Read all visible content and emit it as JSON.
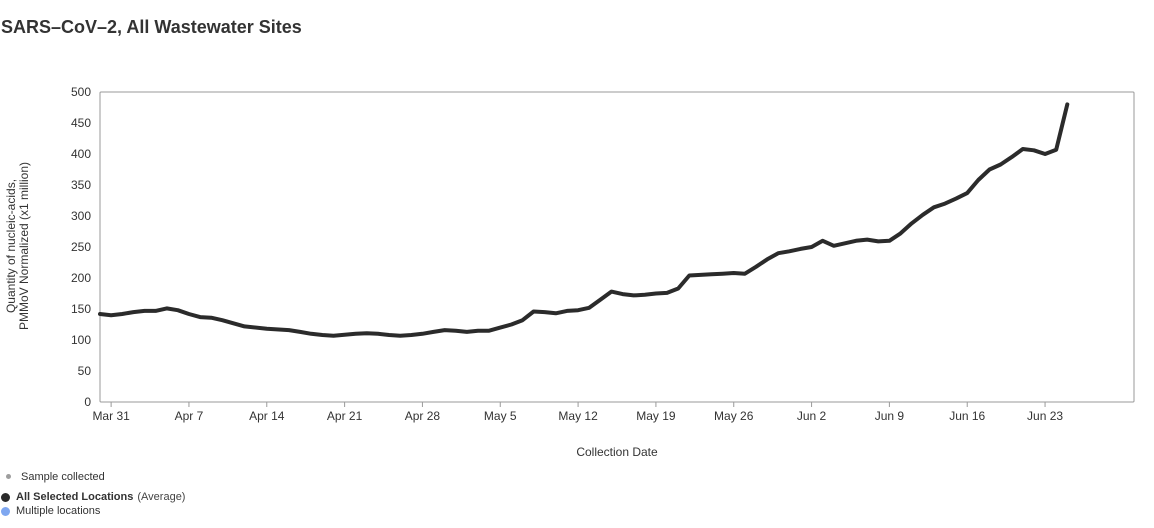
{
  "title": "SARS–CoV–2, All Wastewater Sites",
  "legend": {
    "sample_label": "Sample collected",
    "sample_color": "#9e9e9e",
    "series_label": "All Selected Locations",
    "series_note": "(Average)",
    "series_color": "#2b2b2b",
    "multiple_label": "Multiple locations",
    "multiple_color": "#7fa7f0"
  },
  "chart_data": {
    "type": "line",
    "xlabel": "Collection Date",
    "ylabel": [
      "Quantity of nucleic-acids,",
      "PMMoV Normalized (x1 million)"
    ],
    "ylim": [
      0,
      500
    ],
    "yticks": [
      0,
      50,
      100,
      150,
      200,
      250,
      300,
      350,
      400,
      450,
      500
    ],
    "x_ticks": [
      "Mar 31",
      "Apr 7",
      "Apr 14",
      "Apr 21",
      "Apr 28",
      "May 5",
      "May 12",
      "May 19",
      "May 26",
      "Jun 2",
      "Jun 9",
      "Jun 16",
      "Jun 23"
    ],
    "x_range": [
      "2024-03-30",
      "2024-07-01"
    ],
    "grid": false,
    "series": [
      {
        "color": "#2b2b2b",
        "x": [
          "2024-03-30",
          "2024-03-31",
          "2024-04-01",
          "2024-04-02",
          "2024-04-03",
          "2024-04-04",
          "2024-04-05",
          "2024-04-06",
          "2024-04-07",
          "2024-04-08",
          "2024-04-09",
          "2024-04-10",
          "2024-04-12",
          "2024-04-14",
          "2024-04-16",
          "2024-04-17",
          "2024-04-18",
          "2024-04-19",
          "2024-04-20",
          "2024-04-22",
          "2024-04-23",
          "2024-04-24",
          "2024-04-25",
          "2024-04-26",
          "2024-04-27",
          "2024-04-28",
          "2024-04-29",
          "2024-04-30",
          "2024-05-01",
          "2024-05-02",
          "2024-05-03",
          "2024-05-04",
          "2024-05-05",
          "2024-05-06",
          "2024-05-07",
          "2024-05-08",
          "2024-05-09",
          "2024-05-10",
          "2024-05-11",
          "2024-05-12",
          "2024-05-13",
          "2024-05-14",
          "2024-05-15",
          "2024-05-16",
          "2024-05-17",
          "2024-05-18",
          "2024-05-19",
          "2024-05-20",
          "2024-05-21",
          "2024-05-22",
          "2024-05-23",
          "2024-05-24",
          "2024-05-25",
          "2024-05-26",
          "2024-05-27",
          "2024-05-28",
          "2024-05-29",
          "2024-05-30",
          "2024-05-31",
          "2024-06-01",
          "2024-06-02",
          "2024-06-03",
          "2024-06-04",
          "2024-06-05",
          "2024-06-06",
          "2024-06-07",
          "2024-06-08",
          "2024-06-09",
          "2024-06-10",
          "2024-06-11",
          "2024-06-12",
          "2024-06-13",
          "2024-06-14",
          "2024-06-15",
          "2024-06-16",
          "2024-06-17",
          "2024-06-18",
          "2024-06-19",
          "2024-06-20",
          "2024-06-21",
          "2024-06-22",
          "2024-06-23",
          "2024-06-24",
          "2024-06-25"
        ],
        "values": [
          142,
          140,
          142,
          145,
          147,
          147,
          151,
          148,
          142,
          137,
          136,
          132,
          122,
          118,
          116,
          113,
          110,
          108,
          107,
          110,
          111,
          110,
          108,
          107,
          108,
          110,
          113,
          116,
          115,
          113,
          115,
          115,
          120,
          125,
          132,
          146,
          145,
          143,
          147,
          148,
          152,
          165,
          178,
          174,
          172,
          173,
          175,
          176,
          183,
          204,
          205,
          206,
          207,
          208,
          207,
          218,
          230,
          240,
          243,
          247,
          250,
          260,
          252,
          256,
          260,
          262,
          259,
          260,
          272,
          288,
          302,
          314,
          320,
          328,
          337,
          358,
          375,
          383,
          395,
          408,
          406,
          400,
          407,
          480
        ]
      }
    ]
  }
}
